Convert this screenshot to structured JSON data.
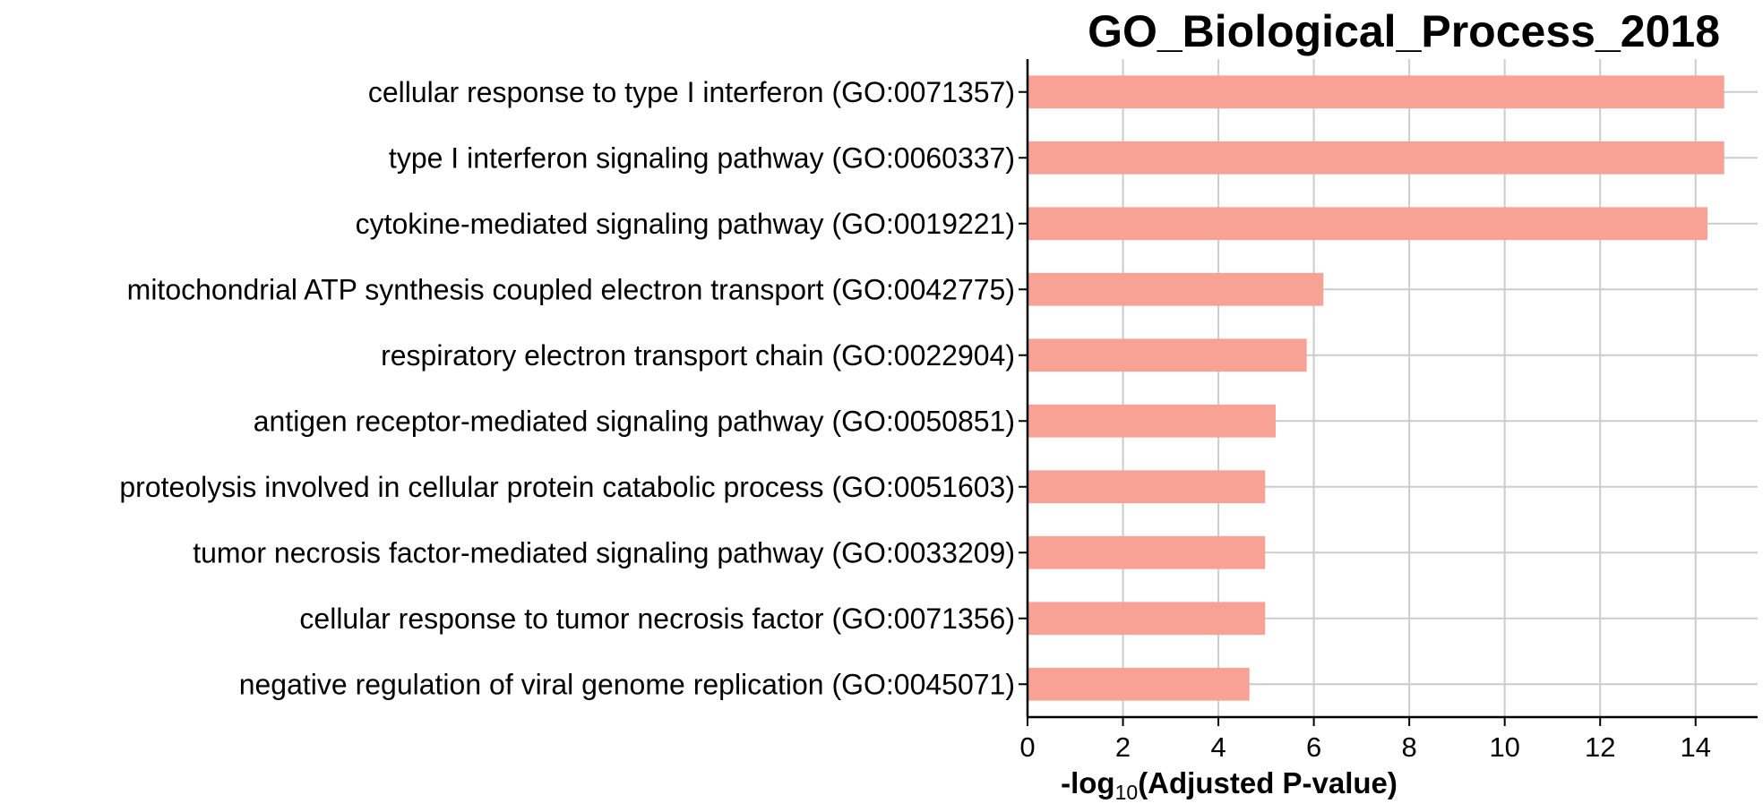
{
  "chart_data": {
    "type": "bar",
    "orientation": "horizontal",
    "title": "GO_Biological_Process_2018",
    "xlabel": {
      "prefix": "-log",
      "subscript": "10",
      "suffix": "(Adjusted P-value)"
    },
    "ylabel": "",
    "xlim": [
      0,
      15.3
    ],
    "xticks": [
      0,
      2,
      4,
      6,
      8,
      10,
      12,
      14
    ],
    "grid": true,
    "bar_color": "#f8a195",
    "categories": [
      "cellular response to type I interferon (GO:0071357)",
      "type I interferon signaling pathway (GO:0060337)",
      "cytokine-mediated signaling pathway (GO:0019221)",
      "mitochondrial ATP synthesis coupled electron transport (GO:0042775)",
      "respiratory electron transport chain (GO:0022904)",
      "antigen receptor-mediated signaling pathway (GO:0050851)",
      "proteolysis involved in cellular protein catabolic process (GO:0051603)",
      "tumor necrosis factor-mediated signaling pathway (GO:0033209)",
      "cellular response to tumor necrosis factor (GO:0071356)",
      "negative regulation of viral genome replication (GO:0045071)"
    ],
    "values": [
      14.6,
      14.6,
      14.25,
      6.2,
      5.85,
      5.2,
      4.98,
      4.98,
      4.98,
      4.65
    ]
  }
}
